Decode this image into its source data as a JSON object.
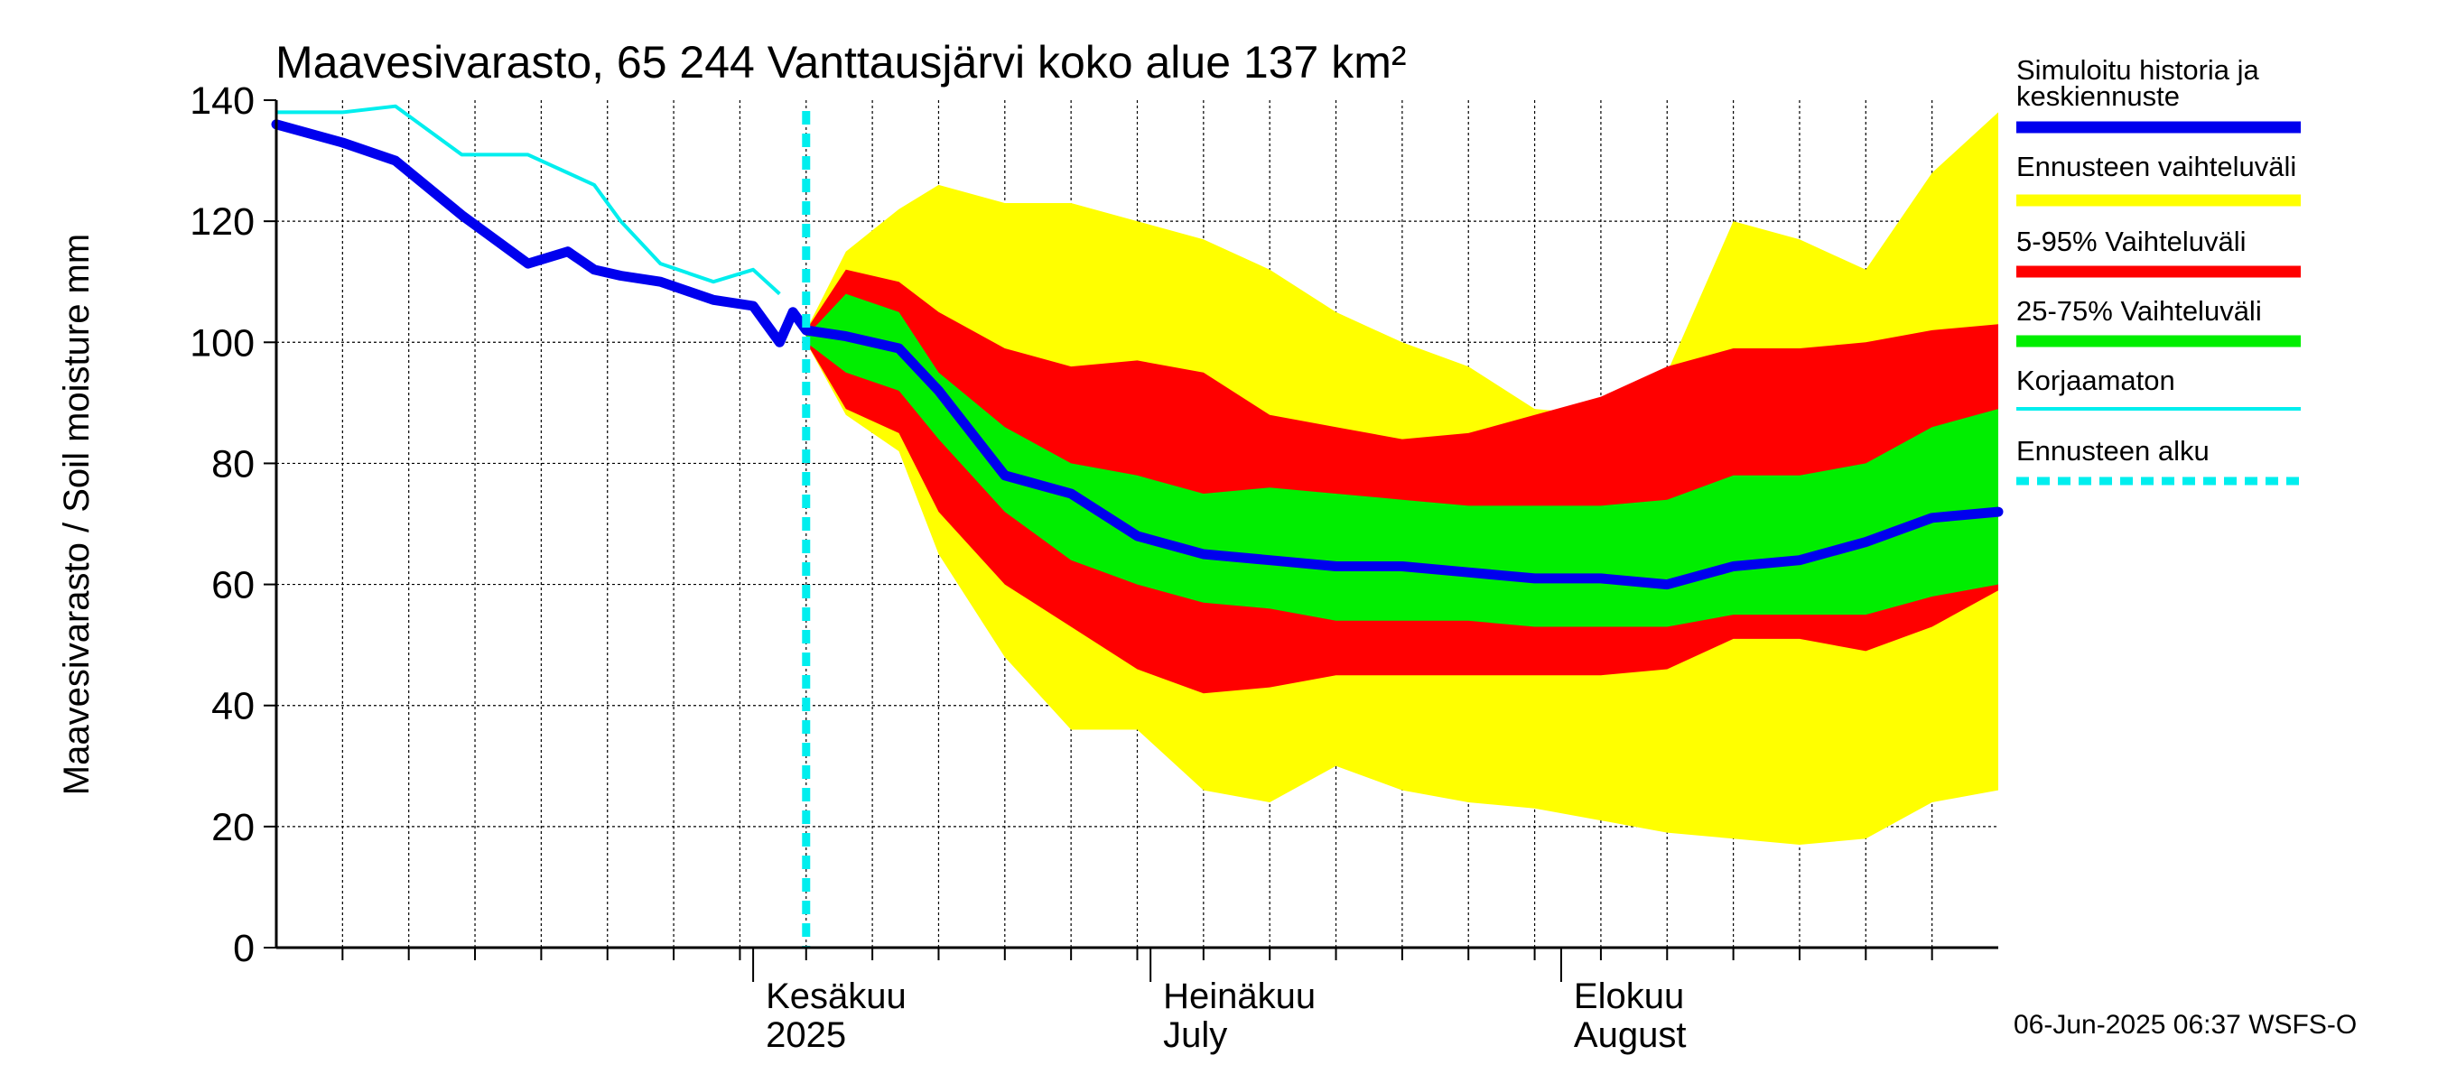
{
  "chart_data": {
    "type": "area",
    "title": "Maavesivarasto, 65 244 Vanttausjärvi koko alue 137 km²",
    "ylabel": "Maavesivarasto / Soil moisture   mm",
    "xlabel": "",
    "ylim": [
      0,
      140
    ],
    "yticks": [
      "0",
      "20",
      "40",
      "60",
      "80",
      "100",
      "120",
      "140"
    ],
    "xlim": [
      "2025-04-26",
      "2025-09-03"
    ],
    "grid": true,
    "legend_position": "right",
    "month_labels": [
      {
        "line1": "Kesäkuu",
        "line2": "2025",
        "date": "2025-06-01"
      },
      {
        "line1": "Heinäkuu",
        "line2": "July",
        "date": "2025-07-01"
      },
      {
        "line1": "Elokuu",
        "line2": "August",
        "date": "2025-08-01"
      }
    ],
    "forecast_start": "2025-06-05",
    "x": [
      "2025-04-26",
      "2025-05-01",
      "2025-05-05",
      "2025-05-10",
      "2025-05-15",
      "2025-05-18",
      "2025-05-20",
      "2025-05-22",
      "2025-05-25",
      "2025-05-29",
      "2025-06-01",
      "2025-06-03",
      "2025-06-04",
      "2025-06-05",
      "2025-06-08",
      "2025-06-12",
      "2025-06-15",
      "2025-06-20",
      "2025-06-25",
      "2025-06-30",
      "2025-07-05",
      "2025-07-10",
      "2025-07-15",
      "2025-07-20",
      "2025-07-25",
      "2025-07-30",
      "2025-08-04",
      "2025-08-09",
      "2025-08-14",
      "2025-08-19",
      "2025-08-24",
      "2025-08-29",
      "2025-09-03"
    ],
    "series": [
      {
        "name": "Simuloitu historia ja keskiennuste",
        "color": "#0000ee",
        "values": [
          136,
          133,
          130,
          121,
          113,
          115,
          112,
          111,
          110,
          107,
          106,
          100,
          105,
          102,
          101,
          99,
          92,
          78,
          75,
          68,
          65,
          64,
          63,
          63,
          62,
          61,
          61,
          60,
          63,
          64,
          67,
          71,
          72
        ]
      },
      {
        "name": "Korjaamaton",
        "color": "#00eeee",
        "values": [
          138,
          138,
          139,
          131,
          131,
          128,
          126,
          120,
          113,
          110,
          112,
          108,
          null,
          null,
          null,
          null,
          null,
          null,
          null,
          null,
          null,
          null,
          null,
          null,
          null,
          null,
          null,
          null,
          null,
          null,
          null,
          null,
          null
        ]
      }
    ],
    "bands": [
      {
        "name": "Ennusteen vaihteluväli",
        "color": "#ffff00",
        "upper": [
          null,
          null,
          null,
          null,
          null,
          null,
          null,
          null,
          null,
          null,
          null,
          null,
          null,
          102,
          115,
          122,
          126,
          123,
          123,
          120,
          117,
          112,
          105,
          100,
          96,
          89,
          88,
          95,
          120,
          117,
          112,
          128,
          138
        ],
        "lower": [
          null,
          null,
          null,
          null,
          null,
          null,
          null,
          null,
          null,
          null,
          null,
          null,
          null,
          100,
          88,
          82,
          65,
          48,
          36,
          36,
          26,
          24,
          30,
          26,
          24,
          23,
          21,
          19,
          18,
          17,
          18,
          24,
          26
        ]
      },
      {
        "name": "5-95% Vaihteluväli",
        "color": "#ff0000",
        "upper": [
          null,
          null,
          null,
          null,
          null,
          null,
          null,
          null,
          null,
          null,
          null,
          null,
          null,
          102,
          112,
          110,
          105,
          99,
          96,
          97,
          95,
          88,
          86,
          84,
          85,
          88,
          91,
          96,
          99,
          99,
          100,
          102,
          103
        ]
      },
      {
        "name": "25-75% Vaihteluväli",
        "color": "#00ee00",
        "upper": [
          null,
          null,
          null,
          null,
          null,
          null,
          null,
          null,
          null,
          null,
          null,
          null,
          null,
          101,
          108,
          105,
          95,
          86,
          80,
          78,
          75,
          76,
          75,
          74,
          73,
          73,
          73,
          74,
          78,
          78,
          80,
          86,
          89
        ]
      }
    ],
    "red_lower": [
      null,
      null,
      null,
      null,
      null,
      null,
      null,
      null,
      null,
      null,
      null,
      null,
      null,
      100,
      89,
      85,
      72,
      60,
      53,
      46,
      42,
      43,
      45,
      45,
      45,
      45,
      45,
      46,
      51,
      51,
      49,
      53,
      59
    ],
    "green_lower": [
      null,
      null,
      null,
      null,
      null,
      null,
      null,
      null,
      null,
      null,
      null,
      null,
      null,
      100,
      95,
      92,
      84,
      72,
      64,
      60,
      57,
      56,
      54,
      54,
      54,
      53,
      53,
      53,
      55,
      55,
      55,
      58,
      60
    ]
  },
  "legend": [
    {
      "label_line1": "Simuloitu historia ja",
      "label_line2": "keskiennuste",
      "color": "#0000ee",
      "style": "thick"
    },
    {
      "label_line1": "Ennusteen vaihteluväli",
      "label_line2": "",
      "color": "#ffff00",
      "style": "thick"
    },
    {
      "label_line1": "5-95% Vaihteluväli",
      "label_line2": "",
      "color": "#ff0000",
      "style": "thick"
    },
    {
      "label_line1": "25-75% Vaihteluväli",
      "label_line2": "",
      "color": "#00ee00",
      "style": "thick"
    },
    {
      "label_line1": "Korjaamaton",
      "label_line2": "",
      "color": "#00eeee",
      "style": "thin"
    },
    {
      "label_line1": "Ennusteen alku",
      "label_line2": "",
      "color": "#00eeee",
      "style": "dashed"
    }
  ],
  "footer": "06-Jun-2025 06:37 WSFS-O"
}
